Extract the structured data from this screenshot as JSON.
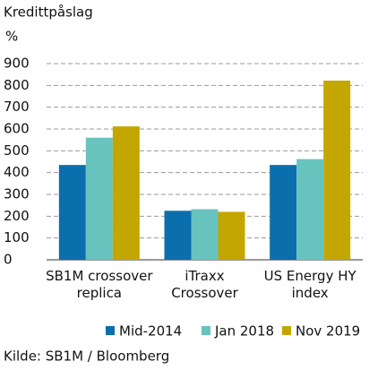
{
  "chart_data": {
    "type": "bar",
    "title": "Kredittpåslag",
    "y_unit": "%",
    "categories": [
      "SB1M crossover replica",
      "iTraxx Crossover",
      "US Energy HY index"
    ],
    "series": [
      {
        "name": "Mid-2014",
        "color": "#0b6fae",
        "values": [
          435,
          225,
          435
        ]
      },
      {
        "name": "Jan 2018",
        "color": "#68c3bf",
        "values": [
          560,
          232,
          462
        ]
      },
      {
        "name": "Nov 2019",
        "color": "#c4a600",
        "values": [
          612,
          220,
          822
        ]
      }
    ],
    "ylim": [
      0,
      900
    ],
    "yticks": [
      0,
      100,
      200,
      300,
      400,
      500,
      600,
      700,
      800,
      900
    ],
    "grid": true,
    "source": "Kilde: SB1M / Bloomberg"
  }
}
